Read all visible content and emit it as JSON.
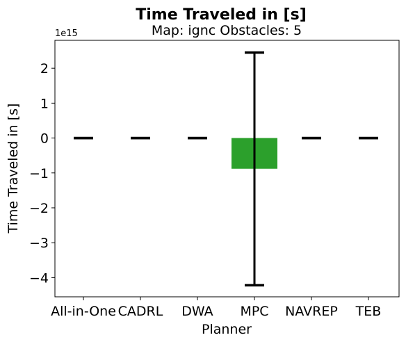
{
  "chart_data": {
    "type": "bar",
    "title": "Time Traveled in [s]",
    "subtitle": "Map: ignc Obstacles: 5",
    "xlabel": "Planner",
    "ylabel": "Time Traveled in [s]",
    "y_offset_label": "1e15",
    "categories": [
      "All-in-One",
      "CADRL",
      "DWA",
      "MPC",
      "NAVREP",
      "TEB"
    ],
    "values": [
      0,
      0,
      0,
      -0.88,
      0,
      0
    ],
    "error_low": [
      0,
      0,
      0,
      -4.22,
      0,
      0
    ],
    "error_high": [
      0,
      0,
      0,
      2.45,
      0,
      0
    ],
    "bar_colors": [
      "#1f77b4",
      "#ff7f0e",
      "#d62728",
      "#2ca02c",
      "#9467bd",
      "#8c564b"
    ],
    "ylim": [
      -4.55,
      2.8
    ],
    "yticks": [
      2,
      1,
      0,
      -1,
      -2,
      -3,
      -4
    ],
    "ytick_labels": [
      "2",
      "1",
      "0",
      "−1",
      "−2",
      "−3",
      "−4"
    ],
    "grid": false,
    "legend": "none"
  }
}
